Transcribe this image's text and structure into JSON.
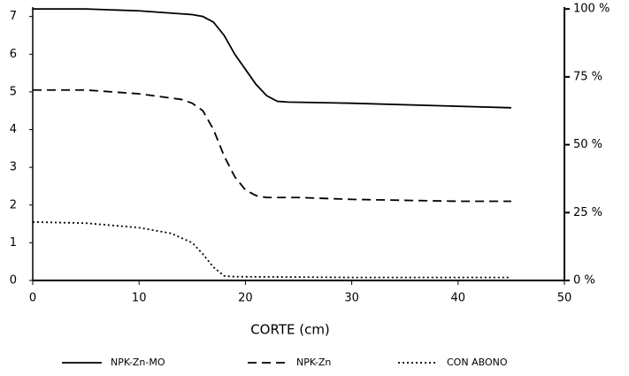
{
  "chart_data": {
    "type": "line",
    "xlabel": "CORTE (cm)",
    "xlim": [
      0,
      50
    ],
    "xticks": [
      0,
      10,
      20,
      30,
      40,
      50
    ],
    "ylim": [
      0,
      7.25
    ],
    "yticks": [
      0,
      1,
      2,
      3,
      4,
      5,
      6,
      7
    ],
    "y2lim": [
      0,
      100.7
    ],
    "y2ticks": [
      {
        "value": 0,
        "label": "0 %"
      },
      {
        "value": 25,
        "label": "25 %"
      },
      {
        "value": 50,
        "label": "50 %"
      },
      {
        "value": 75,
        "label": "75 %"
      },
      {
        "value": 100,
        "label": "100 %"
      }
    ],
    "legend": "bottom",
    "series": [
      {
        "name": "NPK-Zn-MO",
        "color": "#000000",
        "linestyle": "solid",
        "x": [
          0,
          5,
          10,
          15,
          16,
          17,
          18,
          19,
          20,
          21,
          22,
          23,
          24,
          30,
          40,
          45
        ],
        "values": [
          7.2,
          7.2,
          7.15,
          7.05,
          7.0,
          6.85,
          6.5,
          6.0,
          5.6,
          5.2,
          4.9,
          4.75,
          4.73,
          4.7,
          4.62,
          4.58
        ]
      },
      {
        "name": "NPK-Zn",
        "color": "#000000",
        "linestyle": "dashed",
        "x": [
          0,
          5,
          10,
          14,
          15,
          16,
          17,
          18,
          19,
          20,
          21,
          22,
          25,
          30,
          40,
          45
        ],
        "values": [
          5.05,
          5.05,
          4.95,
          4.8,
          4.7,
          4.5,
          4.0,
          3.3,
          2.75,
          2.4,
          2.25,
          2.2,
          2.2,
          2.15,
          2.1,
          2.1
        ]
      },
      {
        "name": "CON ABONO",
        "color": "#000000",
        "linestyle": "dotted",
        "x": [
          0,
          5,
          10,
          13,
          15,
          16,
          17,
          18,
          19,
          30,
          45
        ],
        "values": [
          1.55,
          1.52,
          1.4,
          1.25,
          1.0,
          0.7,
          0.35,
          0.12,
          0.1,
          0.08,
          0.08
        ]
      }
    ]
  }
}
